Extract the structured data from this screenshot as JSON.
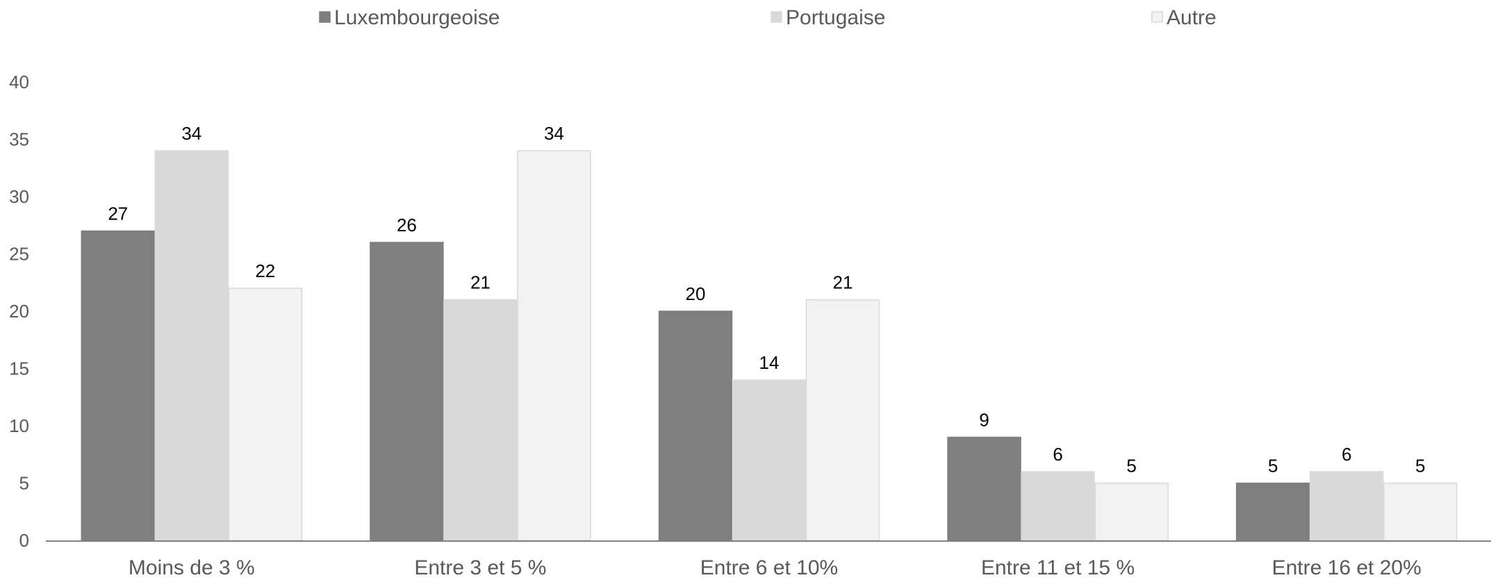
{
  "chart_data": {
    "type": "bar",
    "title": "",
    "xlabel": "",
    "ylabel": "",
    "categories": [
      "Moins de 3 %",
      "Entre 3 et 5 %",
      "Entre 6 et 10%",
      "Entre 11 et 15 %",
      "Entre 16 et 20%"
    ],
    "series": [
      {
        "name": "Luxembourgeoise",
        "color": "#7f7f7f",
        "stroke": "#7f7f7f",
        "values": [
          27,
          26,
          20,
          9,
          5
        ]
      },
      {
        "name": "Portugaise",
        "color": "#d9d9d9",
        "stroke": "#d9d9d9",
        "values": [
          34,
          21,
          14,
          6,
          6
        ]
      },
      {
        "name": "Autre",
        "color": "#f2f2f2",
        "stroke": "#d9d9d9",
        "values": [
          22,
          34,
          21,
          5,
          5
        ]
      }
    ],
    "ylim": [
      0,
      40
    ],
    "yticks": [
      0,
      5,
      10,
      15,
      20,
      25,
      30,
      35,
      40
    ],
    "grid": false,
    "legend_position": "top",
    "data_labels": true,
    "axis_color": "#808080"
  }
}
